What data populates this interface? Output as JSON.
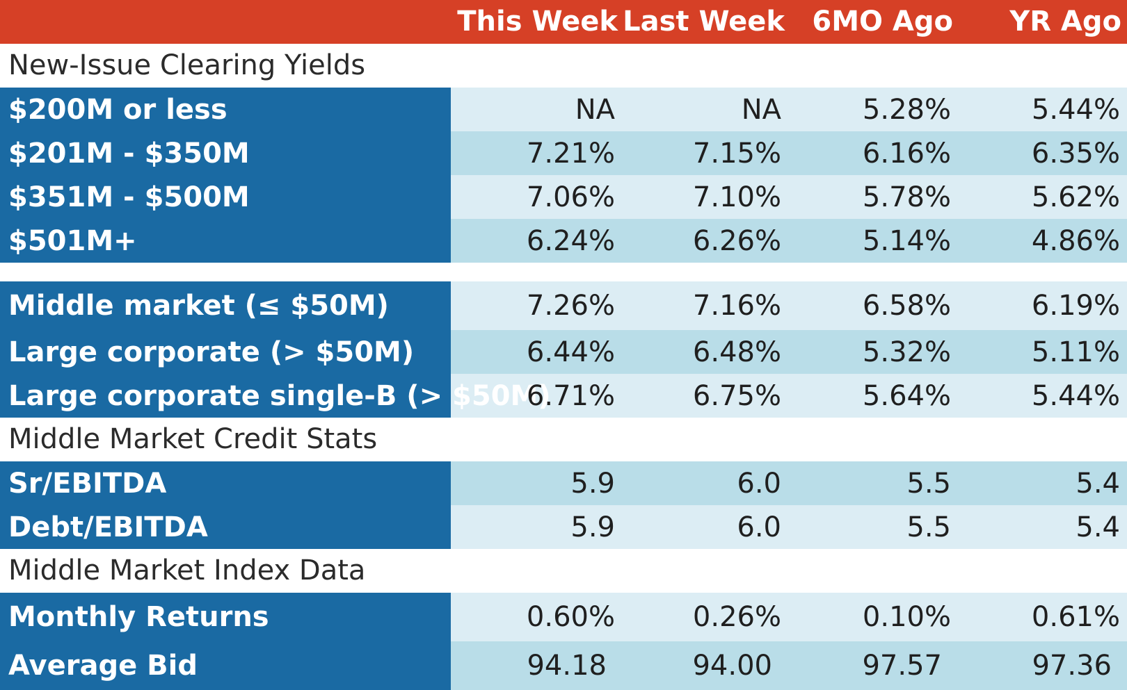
{
  "header": {
    "columns": [
      "This Week",
      "Last Week",
      "6MO Ago",
      "YR Ago"
    ]
  },
  "sections": [
    {
      "title": "New-Issue Clearing Yields",
      "rows": [
        {
          "label": "$200M or less",
          "values": [
            "NA",
            "NA",
            "5.28%",
            "5.44%"
          ]
        },
        {
          "label": "$201M - $350M",
          "values": [
            "7.21%",
            "7.15%",
            "6.16%",
            "6.35%"
          ]
        },
        {
          "label": "$351M - $500M",
          "values": [
            "7.06%",
            "7.10%",
            "5.78%",
            "5.62%"
          ]
        },
        {
          "label": "$501M+",
          "values": [
            "6.24%",
            "6.26%",
            "5.14%",
            "4.86%"
          ]
        }
      ]
    },
    {
      "title": "",
      "rows": [
        {
          "label": "Middle market (≤ $50M)",
          "values": [
            "7.26%",
            "7.16%",
            "6.58%",
            "6.19%"
          ]
        },
        {
          "label": "Large corporate (> $50M)",
          "values": [
            "6.44%",
            "6.48%",
            "5.32%",
            "5.11%"
          ]
        },
        {
          "label": "Large corporate single-B (> $50M)",
          "values": [
            "6.71%",
            "6.75%",
            "5.64%",
            "5.44%"
          ]
        }
      ]
    },
    {
      "title": "Middle Market Credit Stats",
      "rows": [
        {
          "label": "Sr/EBITDA",
          "values": [
            "5.9",
            "6.0",
            "5.5",
            "5.4"
          ]
        },
        {
          "label": "Debt/EBITDA",
          "values": [
            "5.9",
            "6.0",
            "5.5",
            "5.4"
          ]
        }
      ]
    },
    {
      "title": "Middle Market Index Data",
      "rows": [
        {
          "label": "Monthly Returns",
          "values": [
            "0.60%",
            "0.26%",
            "0.10%",
            "0.61%"
          ]
        },
        {
          "label": "Average Bid",
          "values": [
            "94.18",
            "94.00",
            "97.57",
            "97.36"
          ]
        }
      ]
    }
  ],
  "colors": {
    "header": "#d64026",
    "label_bg": "#1a6aa3",
    "row_light": "#dcedf4",
    "row_dark": "#b9dde8"
  }
}
